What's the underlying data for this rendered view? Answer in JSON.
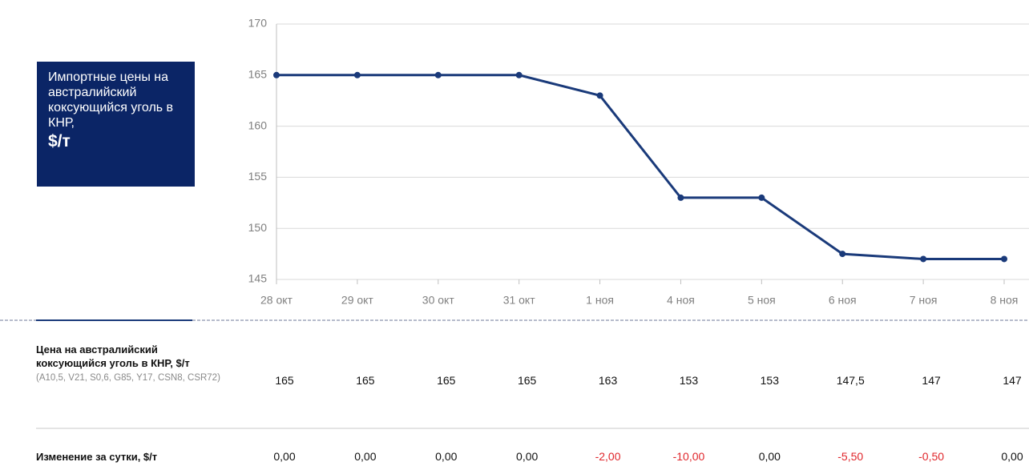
{
  "chart_data": {
    "type": "line",
    "title": "Импортные цены на австралийский коксующийся уголь в КНР,",
    "unit": "$/т",
    "categories": [
      "28 окт",
      "29 окт",
      "30 окт",
      "31 окт",
      "1 ноя",
      "4 ноя",
      "5 ноя",
      "6 ноя",
      "7 ноя",
      "8 ноя"
    ],
    "values": [
      165,
      165,
      165,
      165,
      163,
      153,
      153,
      147.5,
      147,
      147
    ],
    "color": "#1a3a7a",
    "ylim": [
      145,
      170
    ],
    "yticks": [
      145,
      150,
      155,
      160,
      165,
      170
    ],
    "grid": true
  },
  "table": {
    "rows": [
      {
        "label": "Цена на австралийский коксующийся уголь в КНР, $/т",
        "sublabel": "(A10,5, V21, S0,6, G85, Y17, CSN8, CSR72)",
        "values": [
          "165",
          "165",
          "165",
          "165",
          "163",
          "153",
          "153",
          "147,5",
          "147",
          "147"
        ]
      },
      {
        "label": "Изменение за сутки, $/т",
        "values": [
          "0,00",
          "0,00",
          "0,00",
          "0,00",
          "-2,00",
          "-10,00",
          "0,00",
          "-5,50",
          "-0,50",
          "0,00"
        ]
      }
    ],
    "color": "#111111",
    "negative_color": "#e0262b"
  }
}
